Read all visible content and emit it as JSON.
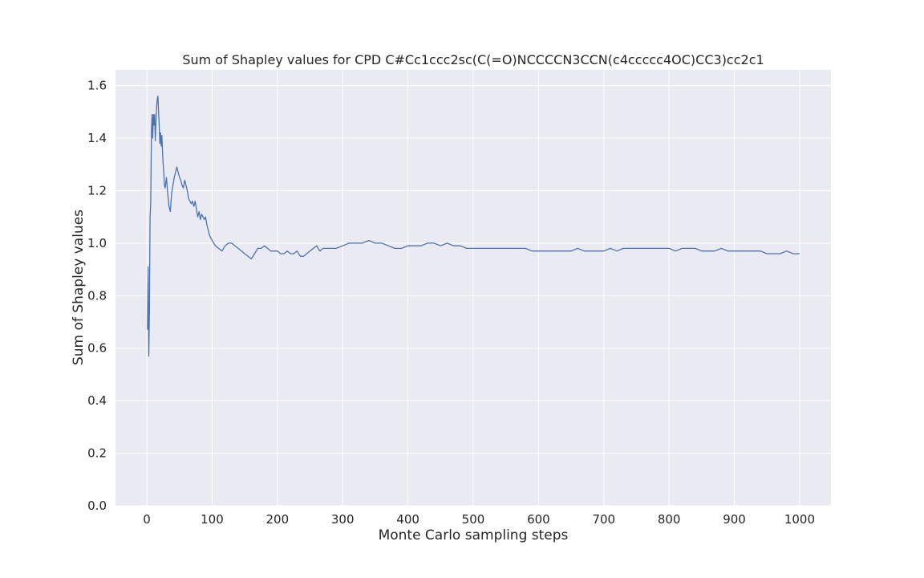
{
  "chart_data": {
    "type": "line",
    "title": "Sum of Shapley values for CPD C#Cc1ccc2sc(C(=O)NCCCCN3CCN(c4ccccc4OC)CC3)cc2c1",
    "xlabel": "Monte Carlo sampling steps",
    "ylabel": "Sum of Shapley values",
    "xlim": [
      -48,
      1048
    ],
    "ylim": [
      0.0,
      1.66
    ],
    "xticks": [
      0,
      100,
      200,
      300,
      400,
      500,
      600,
      700,
      800,
      900,
      1000
    ],
    "yticks": [
      0.0,
      0.2,
      0.4,
      0.6,
      0.8,
      1.0,
      1.2,
      1.4,
      1.6
    ],
    "xtick_labels": [
      "0",
      "100",
      "200",
      "300",
      "400",
      "500",
      "600",
      "700",
      "800",
      "900",
      "1000"
    ],
    "ytick_labels": [
      "0.0",
      "0.2",
      "0.4",
      "0.6",
      "0.8",
      "1.0",
      "1.2",
      "1.4",
      "1.6"
    ],
    "grid": true,
    "colors": {
      "background": "#eaeaf2",
      "line": "#4c72b0",
      "grid": "#ffffff"
    },
    "series": [
      {
        "x": [
          1,
          2,
          3,
          4,
          5,
          6,
          7,
          8,
          9,
          10,
          11,
          12,
          13,
          14,
          15,
          16,
          17,
          18,
          19,
          20,
          21,
          22,
          23,
          24,
          25,
          26,
          27,
          28,
          30,
          32,
          34,
          36,
          38,
          40,
          42,
          44,
          46,
          48,
          50,
          52,
          54,
          56,
          58,
          60,
          62,
          64,
          66,
          68,
          70,
          72,
          74,
          76,
          78,
          80,
          82,
          84,
          86,
          88,
          90,
          92,
          94,
          96,
          98,
          100,
          105,
          110,
          115,
          120,
          125,
          130,
          135,
          140,
          145,
          150,
          155,
          160,
          165,
          170,
          175,
          180,
          185,
          190,
          195,
          200,
          205,
          210,
          215,
          220,
          225,
          230,
          235,
          240,
          245,
          250,
          255,
          260,
          265,
          270,
          280,
          290,
          300,
          310,
          320,
          330,
          340,
          350,
          360,
          370,
          380,
          390,
          400,
          410,
          420,
          430,
          440,
          450,
          460,
          470,
          480,
          490,
          500,
          510,
          520,
          530,
          540,
          550,
          560,
          570,
          580,
          590,
          600,
          610,
          620,
          630,
          640,
          650,
          660,
          670,
          680,
          690,
          700,
          710,
          720,
          730,
          740,
          750,
          760,
          770,
          780,
          790,
          800,
          810,
          820,
          830,
          840,
          850,
          860,
          870,
          880,
          890,
          900,
          910,
          920,
          930,
          940,
          950,
          960,
          970,
          980,
          990,
          1000
        ],
        "values": [
          0.67,
          0.91,
          0.57,
          0.74,
          1.1,
          1.15,
          1.42,
          1.49,
          1.4,
          1.49,
          1.45,
          1.49,
          1.39,
          1.47,
          1.52,
          1.55,
          1.56,
          1.5,
          1.45,
          1.38,
          1.42,
          1.37,
          1.41,
          1.35,
          1.3,
          1.27,
          1.22,
          1.21,
          1.25,
          1.19,
          1.14,
          1.12,
          1.19,
          1.22,
          1.25,
          1.27,
          1.29,
          1.27,
          1.25,
          1.24,
          1.22,
          1.21,
          1.24,
          1.22,
          1.2,
          1.17,
          1.16,
          1.15,
          1.16,
          1.14,
          1.16,
          1.13,
          1.1,
          1.12,
          1.09,
          1.11,
          1.1,
          1.09,
          1.1,
          1.07,
          1.05,
          1.03,
          1.02,
          1.01,
          0.99,
          0.98,
          0.97,
          0.99,
          1.0,
          1.0,
          0.99,
          0.98,
          0.97,
          0.96,
          0.95,
          0.94,
          0.96,
          0.98,
          0.98,
          0.99,
          0.98,
          0.97,
          0.97,
          0.97,
          0.96,
          0.96,
          0.97,
          0.96,
          0.96,
          0.97,
          0.95,
          0.95,
          0.96,
          0.97,
          0.98,
          0.99,
          0.97,
          0.98,
          0.98,
          0.98,
          0.99,
          1.0,
          1.0,
          1.0,
          1.01,
          1.0,
          1.0,
          0.99,
          0.98,
          0.98,
          0.99,
          0.99,
          0.99,
          1.0,
          1.0,
          0.99,
          1.0,
          0.99,
          0.99,
          0.98,
          0.98,
          0.98,
          0.98,
          0.98,
          0.98,
          0.98,
          0.98,
          0.98,
          0.98,
          0.97,
          0.97,
          0.97,
          0.97,
          0.97,
          0.97,
          0.97,
          0.98,
          0.97,
          0.97,
          0.97,
          0.97,
          0.98,
          0.97,
          0.98,
          0.98,
          0.98,
          0.98,
          0.98,
          0.98,
          0.98,
          0.98,
          0.97,
          0.98,
          0.98,
          0.98,
          0.97,
          0.97,
          0.97,
          0.98,
          0.97,
          0.97,
          0.97,
          0.97,
          0.97,
          0.97,
          0.96,
          0.96,
          0.96,
          0.97,
          0.96,
          0.96
        ]
      }
    ]
  }
}
